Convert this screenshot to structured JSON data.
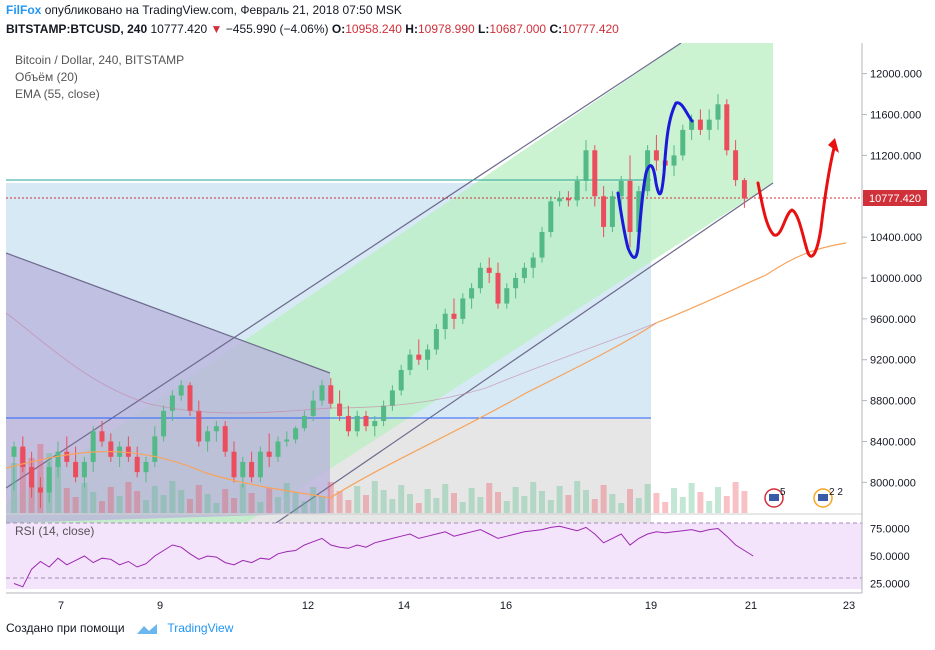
{
  "header": {
    "brand": "FilFox",
    "published_text": "опубликовано на TradingView.com, Февраль 21, 2018 07:50 MSK",
    "symbol": "BITSTAMP:BTCUSD, 240",
    "last": "10777.420",
    "change": "−455.990 (−4.06%)",
    "o_label": "O:",
    "o_val": "10958.240",
    "h_label": "H:",
    "h_val": "10978.990",
    "l_label": "L:",
    "l_val": "10687.000",
    "c_label": "C:",
    "c_val": "10777.420"
  },
  "legends": {
    "main": "Bitcoin / Dollar, 240, BITSTAMP",
    "volume": "Объём (20)",
    "ema": "EMA (55, close)",
    "rsi": "RSI (14, close)"
  },
  "price_axis": {
    "labels": [
      "12000.000",
      "11600.000",
      "11200.000",
      "10800.000",
      "10400.000",
      "10000.000",
      "9600.000",
      "9200.000",
      "8800.000",
      "8400.000",
      "8000.000"
    ],
    "current_price_label": "10777.420"
  },
  "rsi_axis": {
    "labels": [
      "75.0000",
      "50.0000",
      "25.0000"
    ]
  },
  "time_axis": {
    "labels": [
      "7",
      "9",
      "12",
      "14",
      "16",
      "19",
      "21",
      "23"
    ]
  },
  "event_badges": [
    {
      "count": "5"
    },
    {
      "count": "2 2"
    }
  ],
  "footer": {
    "made_with": "Создано при помощи",
    "brand": "TradingView"
  },
  "colors": {
    "up": "#53b987",
    "down": "#eb4d5c",
    "accent": "#2196f3",
    "channel_fill": "#b9efc2",
    "triangle_fill": "#b8b2dc",
    "rsi_band": "#f3e3fb",
    "blue_drawing": "#1a1ad8",
    "red_drawing": "#e81010"
  },
  "chart_data": {
    "type": "candlestick",
    "symbol": "BITSTAMP:BTCUSD",
    "interval": "240",
    "x_ticks": [
      "7",
      "9",
      "12",
      "14",
      "16",
      "19",
      "21",
      "23"
    ],
    "ylim": [
      7700,
      12300
    ],
    "candles": [
      [
        8250,
        8400,
        7920,
        8350
      ],
      [
        8350,
        8450,
        8100,
        8150
      ],
      [
        8150,
        8300,
        7850,
        7950
      ],
      [
        7950,
        8050,
        7750,
        7900
      ],
      [
        7900,
        8200,
        7800,
        8150
      ],
      [
        8150,
        8400,
        8050,
        8300
      ],
      [
        8300,
        8450,
        8150,
        8200
      ],
      [
        8200,
        8350,
        8000,
        8050
      ],
      [
        8050,
        8250,
        7950,
        8200
      ],
      [
        8200,
        8550,
        8100,
        8500
      ],
      [
        8500,
        8600,
        8350,
        8400
      ],
      [
        8400,
        8480,
        8200,
        8250
      ],
      [
        8250,
        8400,
        8150,
        8350
      ],
      [
        8350,
        8450,
        8200,
        8250
      ],
      [
        8250,
        8350,
        8050,
        8100
      ],
      [
        8100,
        8250,
        8000,
        8200
      ],
      [
        8200,
        8550,
        8150,
        8450
      ],
      [
        8450,
        8750,
        8400,
        8700
      ],
      [
        8700,
        8900,
        8600,
        8850
      ],
      [
        8850,
        9000,
        8800,
        8950
      ],
      [
        8950,
        8980,
        8650,
        8700
      ],
      [
        8700,
        8800,
        8350,
        8400
      ],
      [
        8400,
        8550,
        8300,
        8500
      ],
      [
        8500,
        8600,
        8400,
        8550
      ],
      [
        8550,
        8600,
        8250,
        8300
      ],
      [
        8300,
        8400,
        8000,
        8050
      ],
      [
        8050,
        8250,
        7950,
        8200
      ],
      [
        8200,
        8300,
        8000,
        8050
      ],
      [
        8050,
        8350,
        8000,
        8300
      ],
      [
        8300,
        8480,
        8150,
        8250
      ],
      [
        8250,
        8450,
        8200,
        8400
      ],
      [
        8400,
        8500,
        8350,
        8420
      ],
      [
        8420,
        8550,
        8380,
        8530
      ],
      [
        8530,
        8700,
        8500,
        8650
      ],
      [
        8650,
        8900,
        8600,
        8800
      ],
      [
        8800,
        9000,
        8750,
        8950
      ],
      [
        8950,
        9020,
        8720,
        8770
      ],
      [
        8770,
        8900,
        8600,
        8650
      ],
      [
        8650,
        8750,
        8450,
        8500
      ],
      [
        8500,
        8700,
        8450,
        8650
      ],
      [
        8650,
        8700,
        8500,
        8550
      ],
      [
        8550,
        8650,
        8450,
        8600
      ],
      [
        8600,
        8800,
        8550,
        8750
      ],
      [
        8750,
        8950,
        8700,
        8900
      ],
      [
        8900,
        9150,
        8850,
        9100
      ],
      [
        9100,
        9300,
        9050,
        9250
      ],
      [
        9250,
        9400,
        9150,
        9200
      ],
      [
        9200,
        9350,
        9100,
        9300
      ],
      [
        9300,
        9550,
        9250,
        9500
      ],
      [
        9500,
        9700,
        9400,
        9650
      ],
      [
        9650,
        9800,
        9500,
        9600
      ],
      [
        9600,
        9850,
        9550,
        9800
      ],
      [
        9800,
        9950,
        9700,
        9900
      ],
      [
        9900,
        10150,
        9850,
        10100
      ],
      [
        10100,
        10200,
        9950,
        10050
      ],
      [
        10050,
        10150,
        9700,
        9750
      ],
      [
        9750,
        9950,
        9700,
        9900
      ],
      [
        9900,
        10050,
        9800,
        10000
      ],
      [
        10000,
        10150,
        9950,
        10100
      ],
      [
        10100,
        10250,
        10000,
        10200
      ],
      [
        10200,
        10500,
        10150,
        10450
      ],
      [
        10450,
        10800,
        10400,
        10750
      ],
      [
        10750,
        10850,
        10700,
        10780
      ],
      [
        10780,
        10850,
        10700,
        10760
      ],
      [
        10760,
        11000,
        10700,
        10950
      ],
      [
        10950,
        11350,
        10850,
        11250
      ],
      [
        11250,
        11300,
        10700,
        10800
      ],
      [
        10800,
        10900,
        10400,
        10500
      ],
      [
        10500,
        10850,
        10450,
        10800
      ],
      [
        10800,
        11000,
        10650,
        10950
      ],
      [
        10950,
        11200,
        10300,
        10450
      ],
      [
        10450,
        10900,
        10400,
        10850
      ],
      [
        10850,
        11300,
        10800,
        11250
      ],
      [
        11250,
        11400,
        11050,
        11150
      ],
      [
        11150,
        11200,
        11050,
        11100
      ],
      [
        11100,
        11300,
        11000,
        11200
      ],
      [
        11200,
        11500,
        11150,
        11450
      ],
      [
        11450,
        11600,
        11350,
        11550
      ],
      [
        11550,
        11650,
        11400,
        11450
      ],
      [
        11450,
        11650,
        11350,
        11550
      ],
      [
        11550,
        11800,
        11450,
        11700
      ],
      [
        11700,
        11750,
        11200,
        11250
      ],
      [
        11250,
        11350,
        10900,
        10958
      ],
      [
        10958,
        10979,
        10687,
        10777
      ]
    ],
    "ema_55": "shown as orange line",
    "rsi_14": "shown in lower pane, ranging ~20-78",
    "current_price": 10777.42
  }
}
